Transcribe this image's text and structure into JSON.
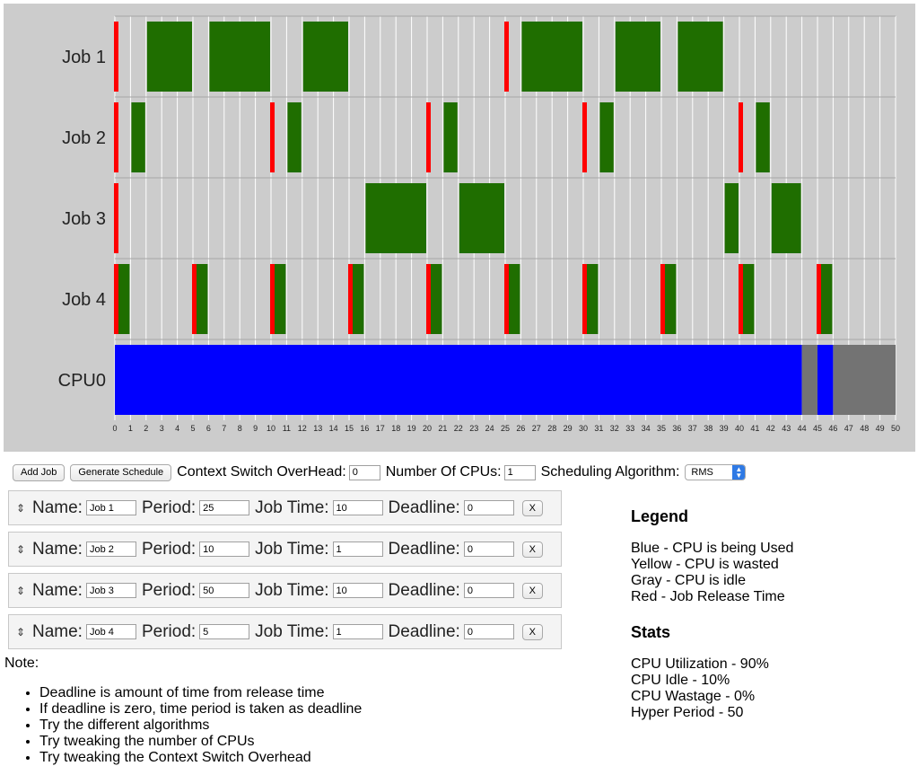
{
  "chart": {
    "row_labels": [
      "Job 1",
      "Job 2",
      "Job 3",
      "Job 4",
      "CPU0"
    ],
    "ticks": [
      "0",
      "1",
      "2",
      "3",
      "4",
      "5",
      "6",
      "7",
      "8",
      "9",
      "10",
      "11",
      "12",
      "13",
      "14",
      "15",
      "16",
      "17",
      "18",
      "19",
      "20",
      "21",
      "22",
      "23",
      "24",
      "25",
      "26",
      "27",
      "28",
      "29",
      "30",
      "31",
      "32",
      "33",
      "34",
      "35",
      "36",
      "37",
      "38",
      "39",
      "40",
      "41",
      "42",
      "43",
      "44",
      "45",
      "46",
      "47",
      "48",
      "49",
      "50"
    ],
    "colors": {
      "run": "#1f6e00",
      "release": "#ff0000",
      "used": "#0000ff",
      "idle": "#737373",
      "bg": "#cccccc",
      "grid": "#ffffff"
    },
    "jobs": [
      {
        "name": "Job 1",
        "runs": [
          [
            2,
            5
          ],
          [
            6,
            10
          ],
          [
            12,
            15
          ],
          [
            26,
            30
          ],
          [
            32,
            35
          ],
          [
            36,
            39
          ]
        ],
        "releases": [
          0,
          25
        ]
      },
      {
        "name": "Job 2",
        "runs": [
          [
            1,
            2
          ],
          [
            11,
            12
          ],
          [
            21,
            22
          ],
          [
            31,
            32
          ],
          [
            41,
            42
          ]
        ],
        "releases": [
          0,
          10,
          20,
          30,
          40
        ]
      },
      {
        "name": "Job 3",
        "runs": [
          [
            16,
            20
          ],
          [
            22,
            25
          ],
          [
            39,
            40
          ],
          [
            42,
            44
          ]
        ],
        "releases": [
          0
        ]
      },
      {
        "name": "Job 4",
        "runs": [
          [
            0,
            1
          ],
          [
            5,
            6
          ],
          [
            10,
            11
          ],
          [
            15,
            16
          ],
          [
            20,
            21
          ],
          [
            25,
            26
          ],
          [
            30,
            31
          ],
          [
            35,
            36
          ],
          [
            40,
            41
          ],
          [
            45,
            46
          ]
        ],
        "releases": [
          0,
          5,
          10,
          15,
          20,
          25,
          30,
          35,
          40,
          45
        ]
      }
    ],
    "cpu": {
      "used": [
        [
          0,
          44
        ],
        [
          45,
          46
        ]
      ],
      "idle": [
        [
          44,
          45
        ],
        [
          46,
          50
        ]
      ]
    }
  },
  "controls": {
    "add_job": "Add Job",
    "generate_schedule": "Generate Schedule",
    "context_switch_label": "Context Switch OverHead:",
    "context_switch_value": "0",
    "num_cpus_label": "Number Of CPUs:",
    "num_cpus_value": "1",
    "algorithm_label": "Scheduling Algorithm:",
    "algorithm_value": "RMS"
  },
  "job_labels": {
    "name": "Name:",
    "period": "Period:",
    "job_time": "Job Time:",
    "deadline": "Deadline:",
    "remove": "X",
    "handle": "⇕"
  },
  "job_list": [
    {
      "name": "Job 1",
      "period": "25",
      "job_time": "10",
      "deadline": "0"
    },
    {
      "name": "Job 2",
      "period": "10",
      "job_time": "1",
      "deadline": "0"
    },
    {
      "name": "Job 3",
      "period": "50",
      "job_time": "10",
      "deadline": "0"
    },
    {
      "name": "Job 4",
      "period": "5",
      "job_time": "1",
      "deadline": "0"
    }
  ],
  "notes": {
    "title": "Note:",
    "items": [
      "Deadline is amount of time from release time",
      "If deadline is zero, time period is taken as deadline",
      "Try the different algorithms",
      "Try tweaking the number of CPUs",
      "Try tweaking the Context Switch Overhead"
    ]
  },
  "legend": {
    "title": "Legend",
    "items": [
      "Blue - CPU is being Used",
      "Yellow - CPU is wasted",
      "Gray - CPU is idle",
      "Red - Job Release Time"
    ]
  },
  "stats": {
    "title": "Stats",
    "items": [
      "CPU Utilization - 90%",
      "CPU Idle - 10%",
      "CPU Wastage - 0%",
      "Hyper Period - 50"
    ]
  }
}
